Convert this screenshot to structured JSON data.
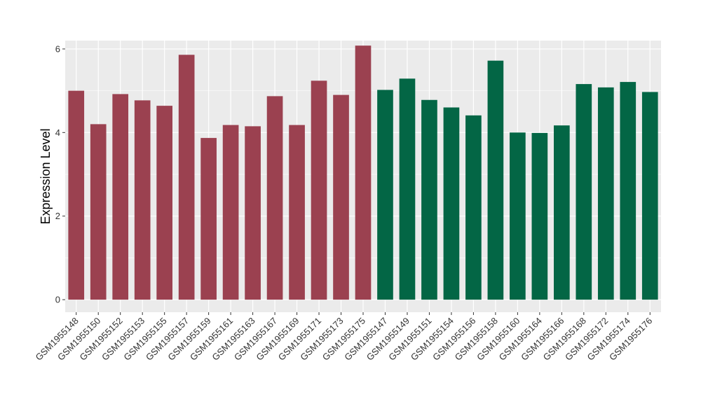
{
  "chart_data": {
    "type": "bar",
    "title": "",
    "xlabel": "",
    "ylabel": "Expression Level",
    "ylim": [
      -0.3,
      6.2
    ],
    "yticks": [
      0,
      2,
      4,
      6
    ],
    "grid": true,
    "categories": [
      "GSM1955148",
      "GSM1955150",
      "GSM1955152",
      "GSM1955153",
      "GSM1955155",
      "GSM1955157",
      "GSM1955159",
      "GSM1955161",
      "GSM1955163",
      "GSM1955167",
      "GSM1955169",
      "GSM1955171",
      "GSM1955173",
      "GSM1955175",
      "GSM1955147",
      "GSM1955149",
      "GSM1955151",
      "GSM1955154",
      "GSM1955156",
      "GSM1955158",
      "GSM1955160",
      "GSM1955164",
      "GSM1955166",
      "GSM1955168",
      "GSM1955172",
      "GSM1955174",
      "GSM1955176"
    ],
    "values": [
      5.0,
      4.2,
      4.92,
      4.77,
      4.64,
      5.86,
      3.87,
      4.18,
      4.15,
      4.87,
      4.18,
      5.24,
      4.9,
      6.08,
      5.02,
      5.29,
      4.78,
      4.6,
      4.41,
      5.72,
      4.0,
      3.99,
      4.17,
      5.16,
      5.08,
      5.21,
      4.97
    ],
    "bar_colors": [
      "#9b4150",
      "#9b4150",
      "#9b4150",
      "#9b4150",
      "#9b4150",
      "#9b4150",
      "#9b4150",
      "#9b4150",
      "#9b4150",
      "#9b4150",
      "#9b4150",
      "#9b4150",
      "#9b4150",
      "#9b4150",
      "#036645",
      "#036645",
      "#036645",
      "#036645",
      "#036645",
      "#036645",
      "#036645",
      "#036645",
      "#036645",
      "#036645",
      "#036645",
      "#036645",
      "#036645"
    ],
    "panel_background": "#ebebeb",
    "grid_color": "#ffffff"
  }
}
